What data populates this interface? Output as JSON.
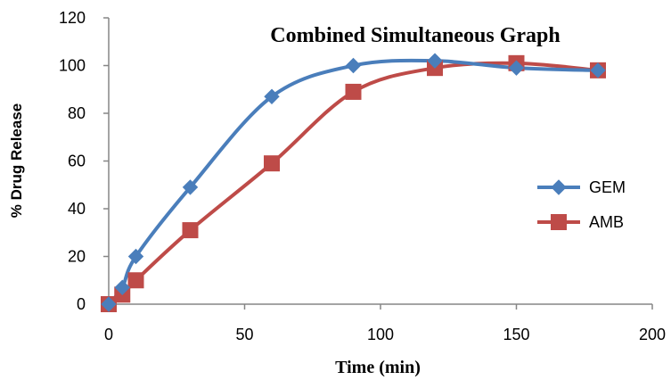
{
  "chart_data": {
    "type": "line",
    "title": "Combined Simultaneous Graph",
    "xlabel": "Time (min)",
    "ylabel": "% Drug Release",
    "xlim": [
      0,
      200
    ],
    "ylim": [
      0,
      120
    ],
    "xticks": [
      0,
      50,
      100,
      150,
      200
    ],
    "yticks": [
      0,
      20,
      40,
      60,
      80,
      100,
      120
    ],
    "grid": false,
    "legend_position": "right",
    "series": [
      {
        "name": "GEM",
        "color": "#4a7ebb",
        "marker": "diamond",
        "x": [
          0,
          5,
          10,
          30,
          60,
          90,
          120,
          150,
          180
        ],
        "y": [
          0,
          7,
          20,
          49,
          87,
          100,
          102,
          99,
          98
        ]
      },
      {
        "name": "AMB",
        "color": "#be4b48",
        "marker": "square",
        "x": [
          0,
          5,
          10,
          30,
          60,
          90,
          120,
          150,
          180
        ],
        "y": [
          0,
          4,
          10,
          31,
          59,
          89,
          99,
          101,
          98
        ]
      }
    ]
  }
}
